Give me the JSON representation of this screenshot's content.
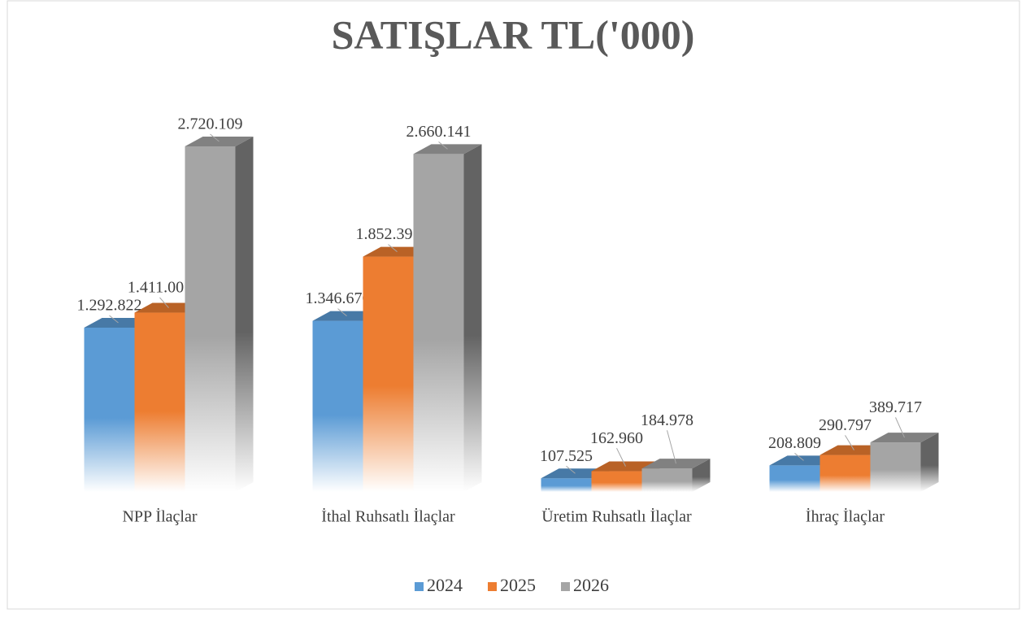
{
  "chart_data": {
    "type": "bar3d",
    "title": "SATIŞLAR TL('000)",
    "categories": [
      "NPP İlaçlar",
      "İthal Ruhsatlı İlaçlar",
      "Üretim Ruhsatlı İlaçlar",
      "İhraç İlaçlar"
    ],
    "series": [
      {
        "name": "2024",
        "color": "#5b9bd5",
        "values": [
          1292822,
          1346670,
          107525,
          208809
        ],
        "value_labels": [
          "1.292.822",
          "1.346.670",
          "107.525",
          "208.809"
        ]
      },
      {
        "name": "2025",
        "color": "#ed7d31",
        "values": [
          1411001,
          1852395,
          162960,
          290797
        ],
        "value_labels": [
          "1.411.001",
          "1.852.395",
          "162.960",
          "290.797"
        ]
      },
      {
        "name": "2026",
        "color": "#a5a5a5",
        "values": [
          2720109,
          2660141,
          184978,
          389717
        ],
        "value_labels": [
          "2.720.109",
          "2.660.141",
          "184.978",
          "389.717"
        ]
      }
    ],
    "legend": "bottom"
  }
}
